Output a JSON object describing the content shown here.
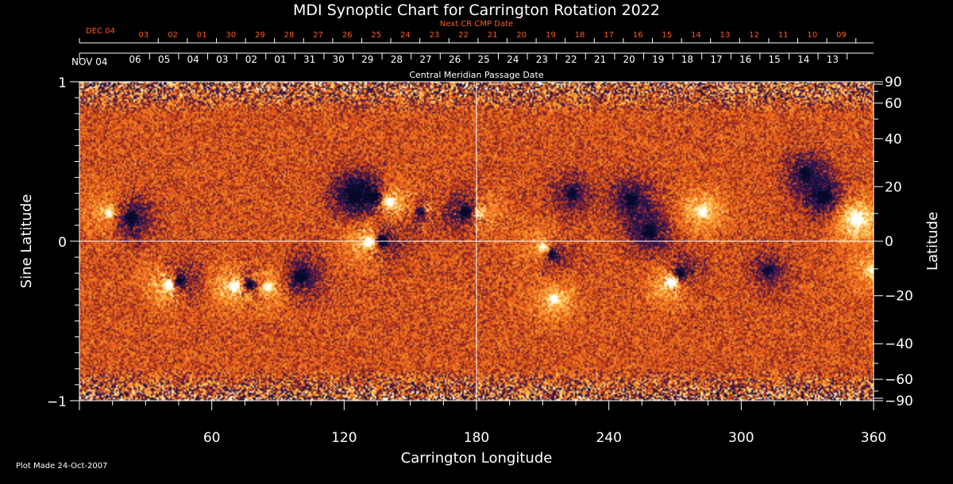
{
  "chart_data": {
    "type": "heatmap",
    "title": "MDI Synoptic Chart for Carrington Rotation 2022",
    "xlabel": "Carrington Longitude",
    "ylabel_left": "Sine Latitude",
    "ylabel_right": "Latitude",
    "xlim": [
      0,
      360
    ],
    "ylim": [
      -1,
      1
    ],
    "x_ticks": [
      60,
      120,
      180,
      240,
      300,
      360
    ],
    "y_ticks_left": [
      {
        "value": 1,
        "label": "1"
      },
      {
        "value": 0,
        "label": "0"
      },
      {
        "value": -1,
        "label": "−1"
      }
    ],
    "y_ticks_right": [
      {
        "deg": 90,
        "label": "90"
      },
      {
        "deg": 60,
        "label": "60"
      },
      {
        "deg": 40,
        "label": "40"
      },
      {
        "deg": 20,
        "label": "20"
      },
      {
        "deg": 0,
        "label": "0"
      },
      {
        "deg": -20,
        "label": "−20"
      },
      {
        "deg": -40,
        "label": "−40"
      },
      {
        "deg": -60,
        "label": "−60"
      },
      {
        "deg": -90,
        "label": "−90"
      }
    ],
    "cmp_axis": {
      "label": "Central Meridian Passage Date",
      "start_label": "NOV 04",
      "dates": [
        "06",
        "05",
        "04",
        "03",
        "02",
        "01",
        "31",
        "30",
        "29",
        "28",
        "27",
        "26",
        "25",
        "24",
        "23",
        "22",
        "21",
        "20",
        "19",
        "18",
        "17",
        "16",
        "15",
        "14",
        "13"
      ]
    },
    "next_cr_axis": {
      "label": "Next CR CMP Date",
      "start_label": "DEC 04",
      "dates": [
        "03",
        "02",
        "01",
        "30",
        "29",
        "28",
        "27",
        "26",
        "25",
        "24",
        "23",
        "22",
        "21",
        "20",
        "19",
        "18",
        "17",
        "16",
        "15",
        "14",
        "13",
        "12",
        "11",
        "10",
        "09"
      ]
    },
    "crosshair": {
      "longitude": 180,
      "sine_latitude": 0
    },
    "footnote": "Plot Made 24-Oct-2007",
    "colors": {
      "background": "#000000",
      "field_base": "#e2541a",
      "positive": "#ffffff",
      "negative": "#0a0a2a",
      "axis": "#ffffff",
      "next_cr_text": "#ff5a1e"
    },
    "regions": [
      {
        "lon": 13,
        "slat": 0.18,
        "polarity": "+",
        "strength": 0.6
      },
      {
        "lon": 23,
        "slat": 0.15,
        "polarity": "-",
        "strength": 0.9
      },
      {
        "lon": 40,
        "slat": -0.27,
        "polarity": "+",
        "strength": 1.0
      },
      {
        "lon": 45,
        "slat": -0.25,
        "polarity": "-",
        "strength": 0.9
      },
      {
        "lon": 70,
        "slat": -0.28,
        "polarity": "+",
        "strength": 1.0
      },
      {
        "lon": 77,
        "slat": -0.27,
        "polarity": "-",
        "strength": 0.9
      },
      {
        "lon": 85,
        "slat": -0.28,
        "polarity": "+",
        "strength": 0.8
      },
      {
        "lon": 100,
        "slat": -0.22,
        "polarity": "-",
        "strength": 0.8
      },
      {
        "lon": 124,
        "slat": 0.3,
        "polarity": "-",
        "strength": 1.0
      },
      {
        "lon": 133,
        "slat": 0.28,
        "polarity": "-",
        "strength": 0.9
      },
      {
        "lon": 140,
        "slat": 0.25,
        "polarity": "+",
        "strength": 1.0
      },
      {
        "lon": 131,
        "slat": 0.0,
        "polarity": "+",
        "strength": 1.0
      },
      {
        "lon": 137,
        "slat": 0.01,
        "polarity": "-",
        "strength": 0.9
      },
      {
        "lon": 155,
        "slat": 0.19,
        "polarity": "-",
        "strength": 0.8
      },
      {
        "lon": 157,
        "slat": 0.2,
        "polarity": "+",
        "strength": 0.6
      },
      {
        "lon": 175,
        "slat": 0.19,
        "polarity": "-",
        "strength": 1.0
      },
      {
        "lon": 181,
        "slat": 0.18,
        "polarity": "+",
        "strength": 0.7
      },
      {
        "lon": 210,
        "slat": -0.04,
        "polarity": "+",
        "strength": 0.7
      },
      {
        "lon": 214,
        "slat": -0.08,
        "polarity": "-",
        "strength": 0.7
      },
      {
        "lon": 215,
        "slat": -0.36,
        "polarity": "+",
        "strength": 0.6
      },
      {
        "lon": 223,
        "slat": 0.3,
        "polarity": "-",
        "strength": 0.6
      },
      {
        "lon": 250,
        "slat": 0.27,
        "polarity": "-",
        "strength": 0.8
      },
      {
        "lon": 258,
        "slat": 0.06,
        "polarity": "-",
        "strength": 0.8
      },
      {
        "lon": 268,
        "slat": -0.25,
        "polarity": "+",
        "strength": 1.0
      },
      {
        "lon": 272,
        "slat": -0.2,
        "polarity": "-",
        "strength": 0.9
      },
      {
        "lon": 282,
        "slat": 0.19,
        "polarity": "+",
        "strength": 0.7
      },
      {
        "lon": 312,
        "slat": -0.18,
        "polarity": "-",
        "strength": 0.5
      },
      {
        "lon": 329,
        "slat": 0.43,
        "polarity": "-",
        "strength": 0.7
      },
      {
        "lon": 337,
        "slat": 0.28,
        "polarity": "-",
        "strength": 0.8
      },
      {
        "lon": 352,
        "slat": 0.14,
        "polarity": "+",
        "strength": 1.0
      },
      {
        "lon": 359,
        "slat": -0.18,
        "polarity": "+",
        "strength": 0.5
      }
    ]
  }
}
